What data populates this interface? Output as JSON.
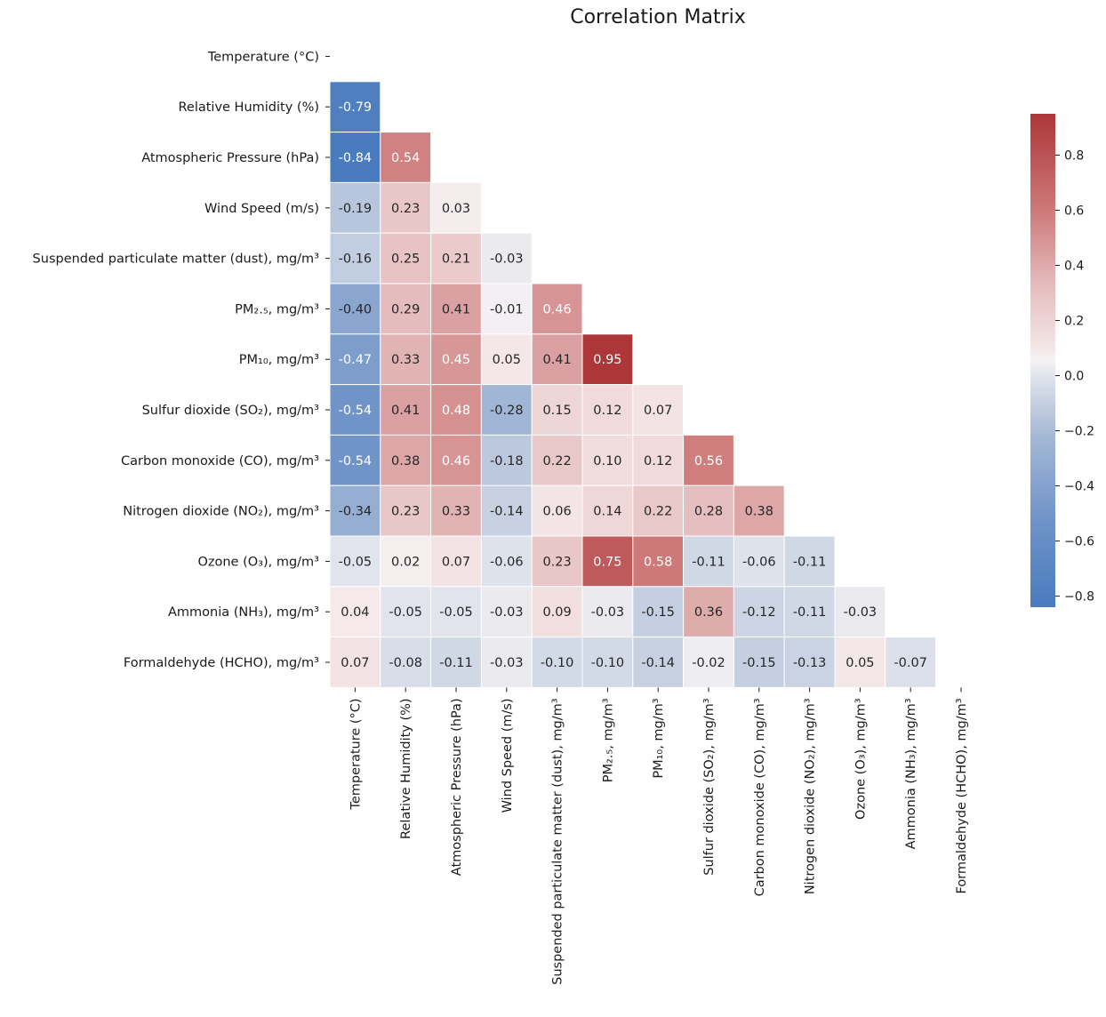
{
  "chart_data": {
    "type": "heatmap",
    "title": "Correlation Matrix",
    "mask": "upper-triangle-including-diagonal",
    "row_labels": [
      "Temperature (°C)",
      "Relative Humidity (%)",
      "Atmospheric Pressure (hPa)",
      "Wind Speed (m/s)",
      "Suspended particulate matter (dust), mg/m³",
      "PM₂.₅, mg/m³",
      "PM₁₀, mg/m³",
      "Sulfur dioxide (SO₂), mg/m³",
      "Carbon monoxide (CO), mg/m³",
      "Nitrogen dioxide (NO₂), mg/m³",
      "Ozone (O₃), mg/m³",
      "Ammonia (NH₃), mg/m³",
      "Formaldehyde (HCHO), mg/m³"
    ],
    "column_labels": [
      "Temperature (°C)",
      "Relative Humidity (%)",
      "Atmospheric Pressure (hPa)",
      "Wind Speed (m/s)",
      "Suspended particulate matter (dust), mg/m³",
      "PM₂.₅, mg/m³",
      "PM₁₀, mg/m³",
      "Sulfur dioxide (SO₂), mg/m³",
      "Carbon monoxide (CO), mg/m³",
      "Nitrogen dioxide (NO₂), mg/m³",
      "Ozone (O₃), mg/m³",
      "Ammonia (NH₃), mg/m³",
      "Formaldehyde (HCHO), mg/m³"
    ],
    "values": [
      [],
      [
        -0.79
      ],
      [
        -0.84,
        0.54
      ],
      [
        -0.19,
        0.23,
        0.03
      ],
      [
        -0.16,
        0.25,
        0.21,
        -0.03
      ],
      [
        -0.4,
        0.29,
        0.41,
        -0.01,
        0.46
      ],
      [
        -0.47,
        0.33,
        0.45,
        0.05,
        0.41,
        0.95
      ],
      [
        -0.54,
        0.41,
        0.48,
        -0.28,
        0.15,
        0.12,
        0.07
      ],
      [
        -0.54,
        0.38,
        0.46,
        -0.18,
        0.22,
        0.1,
        0.12,
        0.56
      ],
      [
        -0.34,
        0.23,
        0.33,
        -0.14,
        0.06,
        0.14,
        0.22,
        0.28,
        0.38
      ],
      [
        -0.05,
        0.02,
        0.07,
        -0.06,
        0.23,
        0.75,
        0.58,
        -0.11,
        -0.06,
        -0.11
      ],
      [
        0.04,
        -0.05,
        -0.05,
        -0.03,
        0.09,
        -0.03,
        -0.15,
        0.36,
        -0.12,
        -0.11,
        -0.03
      ],
      [
        0.07,
        -0.08,
        -0.11,
        -0.03,
        -0.1,
        -0.1,
        -0.14,
        -0.02,
        -0.15,
        -0.13,
        0.05,
        -0.07
      ]
    ],
    "value_format": "two decimals",
    "colormap": "vlag",
    "color_range": [
      -0.84,
      0.95
    ],
    "colorbar": {
      "ticks": [
        0.8,
        0.6,
        0.4,
        0.2,
        0.0,
        -0.2,
        -0.4,
        -0.6,
        -0.8
      ],
      "tick_labels": [
        "0.8",
        "0.6",
        "0.4",
        "0.2",
        "0.0",
        "−0.2",
        "−0.4",
        "−0.6",
        "−0.8"
      ]
    },
    "colors": {
      "negative": "#4a7bbf",
      "neutral": "#faf4f4",
      "positive": "#ad3638",
      "dark_text": "#262626",
      "light_text": "#ffffff"
    }
  }
}
